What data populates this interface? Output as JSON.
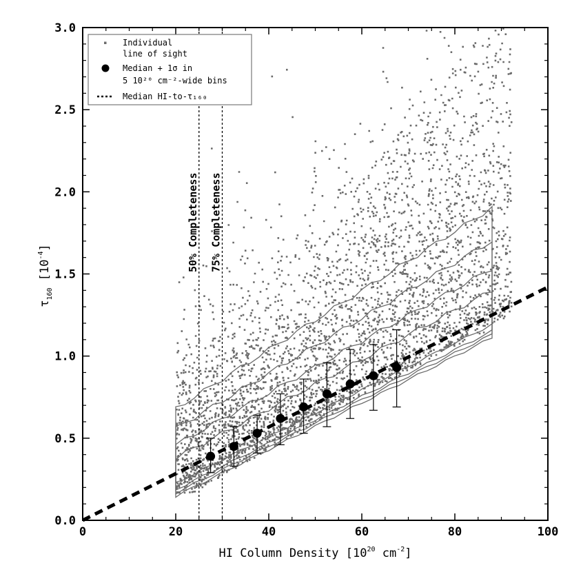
{
  "chart_data": {
    "type": "scatter",
    "xlabel": "HI Column Density [10",
    "xlabel_sup": "20",
    "xlabel_unit": " cm",
    "xlabel_unit_sup": "-2",
    "xlabel_end": "]",
    "ylabel": "τ",
    "ylabel_sub": "160",
    "ylabel_unit": " [10",
    "ylabel_unit_sup": "-4",
    "ylabel_end": "]",
    "xlim": [
      0,
      100
    ],
    "ylim": [
      0.0,
      3.0
    ],
    "x_ticks": [
      0,
      20,
      40,
      60,
      80,
      100
    ],
    "y_ticks": [
      "0.0",
      "0.5",
      "1.0",
      "1.5",
      "2.0",
      "2.5",
      "3.0"
    ],
    "legend": {
      "position": "top-left",
      "entries": [
        {
          "marker": "dot",
          "lines": [
            "Individual",
            "line of sight"
          ]
        },
        {
          "marker": "circle",
          "lines": [
            "Median + 1σ in",
            "5 10²⁰ cm⁻²-wide bins"
          ]
        },
        {
          "marker": "dashed-line",
          "lines": [
            "Median HI-to-τ₁₆₀"
          ]
        }
      ]
    },
    "series": [
      {
        "name": "Median + 1σ in 5 10²⁰ cm⁻²-wide bins",
        "x": [
          27.5,
          32.5,
          37.5,
          42.5,
          47.5,
          52.5,
          57.5,
          62.5,
          67.5
        ],
        "y": [
          0.39,
          0.45,
          0.53,
          0.62,
          0.69,
          0.77,
          0.83,
          0.88,
          0.93
        ],
        "yerr_low": [
          0.29,
          0.33,
          0.41,
          0.46,
          0.53,
          0.57,
          0.62,
          0.67,
          0.69
        ],
        "yerr_high": [
          0.5,
          0.57,
          0.64,
          0.77,
          0.86,
          0.96,
          1.04,
          1.07,
          1.16
        ]
      },
      {
        "name": "Median HI-to-τ₁₆₀",
        "style": "dashed",
        "x": [
          0,
          100
        ],
        "y": [
          0.0,
          1.42
        ]
      }
    ],
    "annotations": [
      {
        "text": "50% Completeness",
        "x": 25
      },
      {
        "text": "75% Completeness",
        "x": 30
      }
    ],
    "colors": {
      "points": "#6b6b6b",
      "contours": "#6b6b6b",
      "medians": "#000000",
      "fit_line": "#000000"
    }
  }
}
